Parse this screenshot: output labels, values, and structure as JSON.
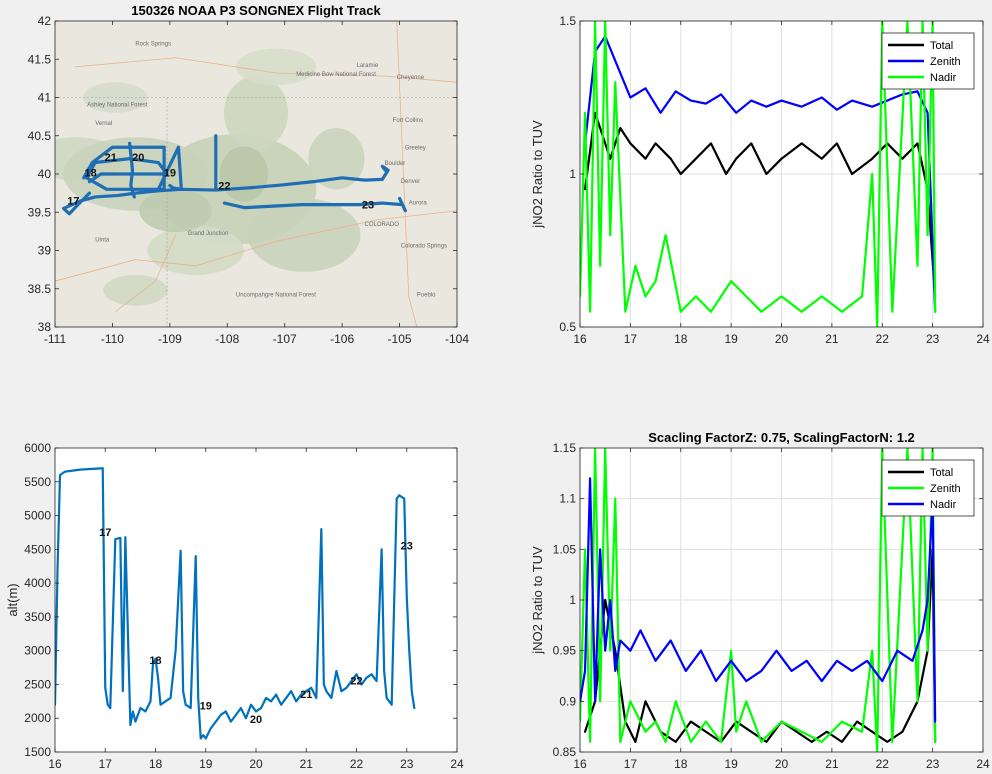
{
  "chart_data": [
    {
      "type": "line",
      "title": "150326 NOAA P3 SONGNEX Flight Track",
      "xlabel": "",
      "ylabel": "",
      "xlim": [
        -111,
        -104
      ],
      "ylim": [
        38,
        42
      ],
      "xticks": [
        -111,
        -110,
        -109,
        -108,
        -107,
        -106,
        -105,
        -104
      ],
      "yticks": [
        38,
        38.5,
        39,
        39.5,
        40,
        40.5,
        41,
        41.5,
        42
      ],
      "basemap": "terrain",
      "map_labels": [
        "Rock Springs",
        "Laramie",
        "Cheyenne",
        "Fort Collins",
        "Greeley",
        "Boulder",
        "Denver",
        "Aurora",
        "COLORADO",
        "Colorado Springs",
        "Pueblo",
        "Grand Junction",
        "Uinta",
        "Medicine Bow National Forest",
        "Uncompahgre National Forest",
        "Ashley National Forest",
        "Vernal"
      ],
      "series": [
        {
          "color": "#1f6db3",
          "lon": [
            -110.85,
            -110.55,
            -110.3,
            -109.9,
            -109.6,
            -109.2,
            -108.8,
            -108.2,
            -107.6,
            -107.0,
            -106.5,
            -106.0,
            -105.6,
            -105.3,
            -105.2,
            -105.3,
            -105.25
          ],
          "lat": [
            39.55,
            39.65,
            39.7,
            39.72,
            39.75,
            39.78,
            39.8,
            39.79,
            39.82,
            39.86,
            39.9,
            39.95,
            39.92,
            39.93,
            40.05,
            40.1,
            40.05
          ]
        },
        {
          "color": "#1f6db3",
          "lon": [
            -108.05,
            -107.7,
            -107.2,
            -106.7,
            -106.2,
            -105.7,
            -105.3,
            -104.95,
            -104.9,
            -105.0
          ],
          "lat": [
            39.62,
            39.56,
            39.58,
            39.6,
            39.6,
            39.6,
            39.62,
            39.6,
            39.52,
            39.68
          ]
        },
        {
          "color": "#1f6db3",
          "lon": [
            -110.5,
            -110.35,
            -110.0,
            -109.6,
            -109.1,
            -109.1,
            -109.6,
            -110.1,
            -110.45,
            -110.3,
            -109.7,
            -109.2,
            -109.05,
            -109.6,
            -110.2,
            -110.4
          ],
          "lat": [
            39.95,
            40.15,
            40.35,
            40.35,
            40.35,
            39.8,
            39.8,
            39.8,
            39.95,
            40.15,
            40.2,
            40.15,
            40.0,
            40.0,
            40.0,
            39.9
          ]
        },
        {
          "color": "#1f6db3",
          "lon": [
            -109.7,
            -109.65,
            -109.68,
            -109.62
          ],
          "lat": [
            40.4,
            40.05,
            39.85,
            39.7
          ]
        },
        {
          "color": "#1f6db3",
          "lon": [
            -109.2,
            -108.85,
            -108.8,
            -108.95,
            -109.0
          ],
          "lat": [
            39.8,
            40.35,
            39.8,
            39.82,
            39.85
          ]
        },
        {
          "color": "#1f6db3",
          "lon": [
            -108.2,
            -108.2,
            -108.2
          ],
          "lat": [
            40.5,
            40.1,
            39.8
          ]
        },
        {
          "color": "#1f6db3",
          "lon": [
            -110.85,
            -110.75,
            -110.6,
            -110.4
          ],
          "lat": [
            39.55,
            39.48,
            39.6,
            39.75
          ]
        }
      ],
      "labels": [
        {
          "text": "17",
          "lon": -110.68,
          "lat": 39.6
        },
        {
          "text": "18",
          "lon": -110.38,
          "lat": 39.97
        },
        {
          "text": "21",
          "lon": -110.03,
          "lat": 40.17
        },
        {
          "text": "20",
          "lon": -109.55,
          "lat": 40.17
        },
        {
          "text": "19",
          "lon": -109.0,
          "lat": 39.97
        },
        {
          "text": "22",
          "lon": -108.05,
          "lat": 39.8
        },
        {
          "text": "23",
          "lon": -105.55,
          "lat": 39.55
        }
      ]
    },
    {
      "type": "line",
      "title": "",
      "xlabel": "",
      "ylabel": "jNO2 Ratio to TUV",
      "xlim": [
        16,
        24
      ],
      "ylim": [
        0.5,
        1.5
      ],
      "xticks": [
        16,
        17,
        18,
        19,
        20,
        21,
        22,
        23,
        24
      ],
      "yticks": [
        0.5,
        1,
        1.5
      ],
      "grid": true,
      "legend_position": "top-right",
      "series": [
        {
          "name": "Total",
          "color": "#000000",
          "x": [
            16.1,
            16.3,
            16.6,
            16.8,
            17.0,
            17.3,
            17.5,
            17.8,
            18.0,
            18.3,
            18.6,
            18.9,
            19.1,
            19.4,
            19.7,
            20.0,
            20.4,
            20.8,
            21.1,
            21.4,
            21.8,
            22.1,
            22.4,
            22.7,
            22.9,
            23.05
          ],
          "y": [
            0.95,
            1.2,
            1.05,
            1.15,
            1.1,
            1.05,
            1.1,
            1.05,
            1.0,
            1.05,
            1.1,
            1.0,
            1.05,
            1.1,
            1.0,
            1.05,
            1.1,
            1.05,
            1.1,
            1.0,
            1.05,
            1.1,
            1.05,
            1.1,
            0.95,
            0.6
          ]
        },
        {
          "name": "Zenith",
          "color": "#0000ff",
          "x": [
            16.1,
            16.3,
            16.5,
            16.8,
            17.0,
            17.3,
            17.6,
            17.9,
            18.2,
            18.5,
            18.8,
            19.1,
            19.4,
            19.7,
            20.0,
            20.4,
            20.8,
            21.1,
            21.4,
            21.8,
            22.1,
            22.4,
            22.7,
            22.9,
            23.05
          ],
          "y": [
            1.1,
            1.4,
            1.45,
            1.33,
            1.25,
            1.28,
            1.2,
            1.27,
            1.24,
            1.23,
            1.26,
            1.2,
            1.24,
            1.22,
            1.24,
            1.22,
            1.25,
            1.21,
            1.24,
            1.22,
            1.24,
            1.26,
            1.27,
            1.2,
            0.55
          ]
        },
        {
          "name": "Nadir",
          "color": "#00ff00",
          "x": [
            16.0,
            16.1,
            16.2,
            16.3,
            16.4,
            16.5,
            16.6,
            16.7,
            16.9,
            17.1,
            17.3,
            17.5,
            17.7,
            18.0,
            18.3,
            18.6,
            18.8,
            19.0,
            19.3,
            19.6,
            20.0,
            20.4,
            20.8,
            21.2,
            21.6,
            21.8,
            21.9,
            22.0,
            22.2,
            22.5,
            22.7,
            22.8,
            22.9,
            23.0,
            23.05
          ],
          "y": [
            0.6,
            1.2,
            0.55,
            1.5,
            0.7,
            1.5,
            0.8,
            1.3,
            0.55,
            0.7,
            0.6,
            0.65,
            0.8,
            0.55,
            0.6,
            0.55,
            0.6,
            0.65,
            0.6,
            0.55,
            0.6,
            0.55,
            0.6,
            0.55,
            0.6,
            1.0,
            0.5,
            1.5,
            0.55,
            1.5,
            0.7,
            1.5,
            0.8,
            1.5,
            0.55
          ]
        }
      ]
    },
    {
      "type": "line",
      "title": "",
      "xlabel": "",
      "ylabel": "alt(m)",
      "xlim": [
        16,
        24
      ],
      "ylim": [
        1500,
        6000
      ],
      "xticks": [
        16,
        17,
        18,
        19,
        20,
        21,
        22,
        23,
        24
      ],
      "yticks": [
        1500,
        2000,
        2500,
        3000,
        3500,
        4000,
        4500,
        5000,
        5500,
        6000
      ],
      "grid": false,
      "series": [
        {
          "color": "#0072bd",
          "x": [
            16.0,
            16.05,
            16.1,
            16.2,
            16.5,
            16.95,
            17.0,
            17.05,
            17.1,
            17.2,
            17.3,
            17.35,
            17.4,
            17.5,
            17.55,
            17.6,
            17.7,
            17.8,
            17.9,
            17.95,
            18.0,
            18.05,
            18.1,
            18.2,
            18.3,
            18.4,
            18.5,
            18.55,
            18.6,
            18.7,
            18.8,
            18.85,
            18.9,
            18.95,
            19.0,
            19.1,
            19.2,
            19.3,
            19.4,
            19.5,
            19.6,
            19.7,
            19.8,
            19.9,
            20.0,
            20.1,
            20.2,
            20.3,
            20.4,
            20.5,
            20.6,
            20.7,
            20.8,
            20.9,
            21.0,
            21.1,
            21.2,
            21.3,
            21.35,
            21.4,
            21.5,
            21.6,
            21.7,
            21.8,
            21.9,
            22.0,
            22.1,
            22.2,
            22.3,
            22.4,
            22.5,
            22.55,
            22.6,
            22.7,
            22.8,
            22.85,
            22.95,
            23.0,
            23.05,
            23.1,
            23.15
          ],
          "y": [
            2200,
            4200,
            5600,
            5650,
            5680,
            5700,
            2450,
            2200,
            2150,
            4650,
            4670,
            2400,
            4680,
            1900,
            2100,
            1950,
            2150,
            2100,
            2250,
            2800,
            2880,
            2600,
            2200,
            2250,
            2300,
            3000,
            4480,
            2400,
            2200,
            2150,
            4400,
            2300,
            1700,
            1750,
            1700,
            1850,
            1950,
            2050,
            2100,
            1950,
            2050,
            2150,
            2000,
            2200,
            2100,
            2150,
            2300,
            2250,
            2350,
            2200,
            2300,
            2400,
            2250,
            2350,
            2400,
            2450,
            2300,
            4800,
            2500,
            2400,
            2300,
            2700,
            2400,
            2450,
            2550,
            2650,
            2500,
            2600,
            2650,
            2550,
            4500,
            2700,
            2300,
            2200,
            5250,
            5300,
            5250,
            3800,
            3000,
            2400,
            2150
          ]
        }
      ],
      "labels": [
        {
          "text": "17",
          "x": 17.0,
          "y": 4700
        },
        {
          "text": "18",
          "x": 18.0,
          "y": 2800
        },
        {
          "text": "19",
          "x": 19.0,
          "y": 2130
        },
        {
          "text": "20",
          "x": 20.0,
          "y": 1930
        },
        {
          "text": "21",
          "x": 21.0,
          "y": 2300
        },
        {
          "text": "22",
          "x": 22.0,
          "y": 2500
        },
        {
          "text": "23",
          "x": 23.0,
          "y": 4500
        }
      ]
    },
    {
      "type": "line",
      "title": "Scacling FactorZ: 0.75, ScalingFactorN: 1.2",
      "xlabel": "",
      "ylabel": "jNO2 Ratio to TUV",
      "xlim": [
        16,
        24
      ],
      "ylim": [
        0.85,
        1.15
      ],
      "xticks": [
        16,
        17,
        18,
        19,
        20,
        21,
        22,
        23,
        24
      ],
      "yticks": [
        0.85,
        0.9,
        0.95,
        1,
        1.05,
        1.1,
        1.15
      ],
      "grid": true,
      "legend_position": "top-right",
      "series": [
        {
          "name": "Total",
          "color": "#000000",
          "x": [
            16.1,
            16.3,
            16.5,
            16.7,
            16.9,
            17.1,
            17.3,
            17.6,
            17.9,
            18.2,
            18.5,
            18.8,
            19.1,
            19.4,
            19.7,
            20.0,
            20.3,
            20.6,
            20.9,
            21.2,
            21.5,
            21.8,
            22.1,
            22.4,
            22.7,
            22.9,
            23.0,
            23.05
          ],
          "y": [
            0.87,
            0.9,
            1.0,
            0.95,
            0.88,
            0.86,
            0.9,
            0.87,
            0.86,
            0.88,
            0.87,
            0.86,
            0.88,
            0.87,
            0.86,
            0.88,
            0.87,
            0.86,
            0.87,
            0.86,
            0.88,
            0.87,
            0.86,
            0.87,
            0.9,
            0.95,
            1.05,
            0.86
          ]
        },
        {
          "name": "Zenith",
          "color": "#00ff00",
          "x": [
            16.0,
            16.1,
            16.2,
            16.3,
            16.4,
            16.5,
            16.6,
            16.7,
            16.8,
            17.0,
            17.3,
            17.5,
            17.7,
            17.9,
            18.2,
            18.5,
            18.8,
            19.0,
            19.1,
            19.3,
            19.6,
            20.0,
            20.4,
            20.8,
            21.2,
            21.6,
            21.8,
            21.9,
            22.0,
            22.2,
            22.5,
            22.7,
            22.8,
            22.9,
            23.0,
            23.05
          ],
          "y": [
            0.88,
            1.05,
            0.86,
            1.15,
            0.9,
            1.15,
            0.95,
            1.1,
            0.86,
            0.9,
            0.87,
            0.88,
            0.86,
            0.9,
            0.86,
            0.88,
            0.86,
            0.95,
            0.87,
            0.9,
            0.86,
            0.88,
            0.87,
            0.86,
            0.88,
            0.87,
            0.95,
            0.85,
            1.15,
            0.86,
            1.15,
            0.9,
            1.15,
            0.95,
            1.15,
            0.86
          ]
        },
        {
          "name": "Nadir",
          "color": "#0000ff",
          "x": [
            16.0,
            16.1,
            16.2,
            16.3,
            16.4,
            16.5,
            16.6,
            16.7,
            16.8,
            17.0,
            17.2,
            17.5,
            17.8,
            18.1,
            18.4,
            18.7,
            19.0,
            19.3,
            19.6,
            19.9,
            20.2,
            20.5,
            20.8,
            21.1,
            21.4,
            21.7,
            22.0,
            22.3,
            22.6,
            22.8,
            22.9,
            23.0,
            23.05
          ],
          "y": [
            0.9,
            0.93,
            1.12,
            0.9,
            1.05,
            0.95,
            1.0,
            0.93,
            0.96,
            0.95,
            0.97,
            0.94,
            0.96,
            0.93,
            0.95,
            0.92,
            0.94,
            0.92,
            0.93,
            0.95,
            0.93,
            0.94,
            0.92,
            0.94,
            0.93,
            0.94,
            0.92,
            0.95,
            0.94,
            0.97,
            1.0,
            1.1,
            0.88
          ]
        }
      ]
    }
  ]
}
